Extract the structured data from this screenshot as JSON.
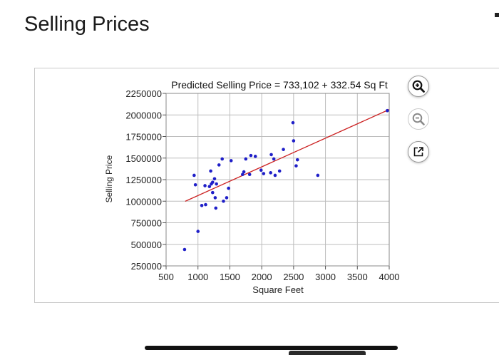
{
  "page": {
    "title": "Selling Prices"
  },
  "toolbar": {
    "zoom_in_icon": "magnifier-plus-icon",
    "zoom_out_icon": "magnifier-minus-icon",
    "popout_icon": "external-link-icon"
  },
  "colors": {
    "points": "#1f1fc8",
    "regression_line": "#cc2222",
    "grid": "#bdbdbd",
    "plot_border": "#888888"
  },
  "chart_data": {
    "type": "scatter",
    "title": "Predicted Selling Price = 733,102 + 332.54 Sq Ft",
    "xlabel": "Square Feet",
    "ylabel": "Selling Price",
    "xlim": [
      500,
      4000
    ],
    "ylim": [
      250000,
      2250000
    ],
    "x_ticks": [
      "500",
      "1000",
      "1500",
      "2000",
      "2500",
      "3000",
      "3500",
      "4000"
    ],
    "y_ticks": [
      "2250000",
      "2000000",
      "1750000",
      "1500000",
      "1250000",
      "1000000",
      "750000",
      "500000",
      "250000"
    ],
    "grid": true,
    "regression": {
      "intercept": 733102,
      "slope": 332.54,
      "x_range": [
        800,
        4000
      ]
    },
    "points": [
      [
        790,
        440000
      ],
      [
        1000,
        650000
      ],
      [
        1060,
        950000
      ],
      [
        1120,
        960000
      ],
      [
        940,
        1300000
      ],
      [
        960,
        1190000
      ],
      [
        1110,
        1180000
      ],
      [
        1180,
        1170000
      ],
      [
        1200,
        1350000
      ],
      [
        1210,
        1200000
      ],
      [
        1230,
        1220000
      ],
      [
        1230,
        1100000
      ],
      [
        1260,
        1260000
      ],
      [
        1270,
        1040000
      ],
      [
        1290,
        1200000
      ],
      [
        1280,
        920000
      ],
      [
        1330,
        1420000
      ],
      [
        1380,
        1490000
      ],
      [
        1400,
        1000000
      ],
      [
        1450,
        1040000
      ],
      [
        1480,
        1150000
      ],
      [
        1520,
        1470000
      ],
      [
        1700,
        1310000
      ],
      [
        1720,
        1340000
      ],
      [
        1750,
        1490000
      ],
      [
        1810,
        1310000
      ],
      [
        1830,
        1530000
      ],
      [
        1900,
        1520000
      ],
      [
        1990,
        1360000
      ],
      [
        2030,
        1320000
      ],
      [
        2140,
        1330000
      ],
      [
        2150,
        1540000
      ],
      [
        2190,
        1490000
      ],
      [
        2210,
        1300000
      ],
      [
        2280,
        1350000
      ],
      [
        2340,
        1600000
      ],
      [
        2490,
        1910000
      ],
      [
        2500,
        1700000
      ],
      [
        2540,
        1410000
      ],
      [
        2560,
        1480000
      ],
      [
        2880,
        1300000
      ],
      [
        3970,
        2050000
      ]
    ]
  }
}
